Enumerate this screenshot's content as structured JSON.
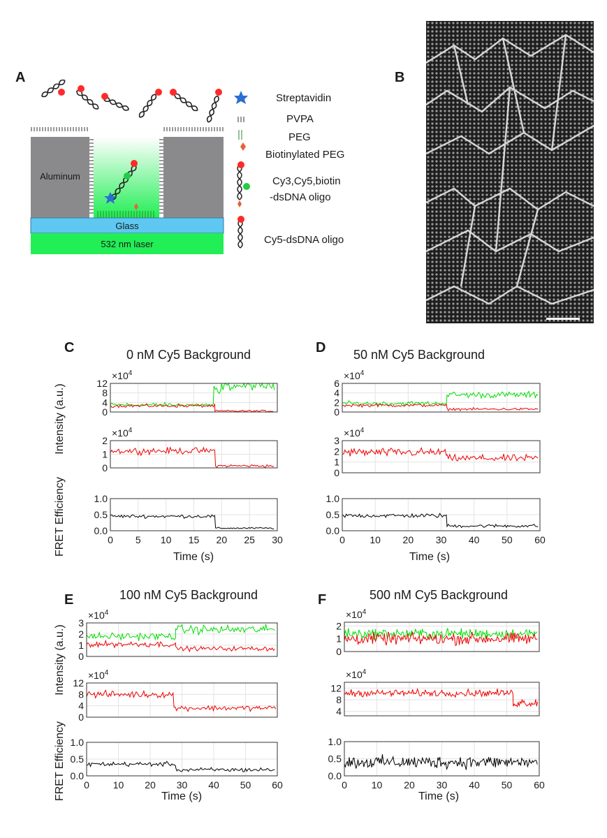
{
  "panel_labels": {
    "a": "A",
    "b": "B",
    "c": "C",
    "d": "D",
    "e": "E",
    "f": "F"
  },
  "schematic": {
    "aluminum": "Aluminum",
    "glass": "Glass",
    "laser": "532 nm laser",
    "legend": {
      "streptavidin": "Streptavidin",
      "pvpa": "PVPA",
      "peg": "PEG",
      "biotin_peg": "Biotinylated PEG",
      "oligo1_line1": "Cy3,Cy5,biotin",
      "oligo1_line2": "-dsDNA oligo",
      "oligo2": "Cy5-dsDNA oligo"
    }
  },
  "micrograph": {
    "description_icon": "sem-micrograph-icon"
  },
  "common": {
    "ylabel_intensity": "Intensity (a.u.)",
    "ylabel_fret": "FRET Efficiency",
    "xlabel": "Time (s)",
    "exp_label": "×10",
    "exp_power": "4"
  },
  "colors": {
    "donor": "#00dd00",
    "acceptor": "#ee0000",
    "fret": "#000000"
  },
  "chart_data": [
    {
      "panel": "C",
      "type": "line",
      "title": "0 nM Cy5 Background",
      "xlabel": "Time (s)",
      "xlim": [
        0,
        30
      ],
      "xticks": [
        0,
        5,
        10,
        15,
        20,
        25,
        30
      ],
      "step": 0.25,
      "subplots": [
        {
          "name": "donor-acceptor",
          "ylim": [
            0,
            12
          ],
          "yticks": [
            0,
            4,
            8,
            12
          ],
          "exponent": "×10^4",
          "series": [
            {
              "name": "donor",
              "color": "#00dd00",
              "segments": [
                {
                  "t0": 0,
                  "t1": 18.6,
                  "mean": 3,
                  "noise": 0.7
                },
                {
                  "t0": 18.6,
                  "t1": 20,
                  "mean": 8,
                  "noise": 3
                },
                {
                  "t0": 20,
                  "t1": 29.5,
                  "mean": 11,
                  "noise": 1.4
                }
              ]
            },
            {
              "name": "acceptor",
              "color": "#ee0000",
              "segments": [
                {
                  "t0": 0,
                  "t1": 18.8,
                  "mean": 2.6,
                  "noise": 0.5
                },
                {
                  "t0": 18.8,
                  "t1": 29.5,
                  "mean": 0.4,
                  "noise": 0.3
                }
              ]
            }
          ]
        },
        {
          "name": "acceptor",
          "ylim": [
            0,
            2
          ],
          "yticks": [
            0,
            1,
            2
          ],
          "exponent": "×10^4",
          "series": [
            {
              "name": "acceptor",
              "color": "#ee0000",
              "segments": [
                {
                  "t0": 0,
                  "t1": 18.9,
                  "mean": 1.25,
                  "noise": 0.18
                },
                {
                  "t0": 18.9,
                  "t1": 29.5,
                  "mean": 0.15,
                  "noise": 0.08
                }
              ]
            }
          ]
        },
        {
          "name": "fret",
          "ylim": [
            0,
            1
          ],
          "yticks": [
            0.0,
            0.5,
            1.0
          ],
          "yticklabels": [
            "0.0",
            "0.5",
            "1.0"
          ],
          "series": [
            {
              "name": "fret",
              "color": "#000000",
              "segments": [
                {
                  "t0": 0,
                  "t1": 18.9,
                  "mean": 0.45,
                  "noise": 0.04
                },
                {
                  "t0": 18.9,
                  "t1": 29.5,
                  "mean": 0.08,
                  "noise": 0.02
                }
              ]
            }
          ]
        }
      ]
    },
    {
      "panel": "D",
      "type": "line",
      "title": "50 nM Cy5 Background",
      "xlabel": "Time (s)",
      "xlim": [
        0,
        60
      ],
      "xticks": [
        0,
        10,
        20,
        30,
        40,
        50,
        60
      ],
      "step": 0.4,
      "subplots": [
        {
          "name": "donor-acceptor",
          "ylim": [
            0,
            6
          ],
          "yticks": [
            0,
            2,
            4,
            6
          ],
          "exponent": "×10^4",
          "series": [
            {
              "name": "donor",
              "color": "#00dd00",
              "segments": [
                {
                  "t0": 0,
                  "t1": 31.8,
                  "mean": 1.8,
                  "noise": 0.35
                },
                {
                  "t0": 31.8,
                  "t1": 59.5,
                  "mean": 3.6,
                  "noise": 0.5
                }
              ]
            },
            {
              "name": "acceptor",
              "color": "#ee0000",
              "segments": [
                {
                  "t0": 0,
                  "t1": 31.8,
                  "mean": 1.4,
                  "noise": 0.25
                },
                {
                  "t0": 31.8,
                  "t1": 59.5,
                  "mean": 0.6,
                  "noise": 0.2
                }
              ]
            }
          ]
        },
        {
          "name": "acceptor",
          "ylim": [
            0,
            3
          ],
          "yticks": [
            0,
            1,
            2,
            3
          ],
          "exponent": "×10^4",
          "series": [
            {
              "name": "acceptor",
              "color": "#ee0000",
              "segments": [
                {
                  "t0": 0,
                  "t1": 31.8,
                  "mean": 1.9,
                  "noise": 0.3
                },
                {
                  "t0": 31.8,
                  "t1": 59.5,
                  "mean": 1.35,
                  "noise": 0.25
                }
              ]
            }
          ]
        },
        {
          "name": "fret",
          "ylim": [
            0,
            1
          ],
          "yticks": [
            0.0,
            0.5,
            1.0
          ],
          "yticklabels": [
            "0.0",
            "0.5",
            "1.0"
          ],
          "series": [
            {
              "name": "fret",
              "color": "#000000",
              "segments": [
                {
                  "t0": 0,
                  "t1": 31.8,
                  "mean": 0.47,
                  "noise": 0.05
                },
                {
                  "t0": 31.8,
                  "t1": 59.5,
                  "mean": 0.15,
                  "noise": 0.04
                }
              ]
            }
          ]
        }
      ]
    },
    {
      "panel": "E",
      "type": "line",
      "title": "100 nM Cy5 Background",
      "xlabel": "Time (s)",
      "xlim": [
        0,
        60
      ],
      "xticks": [
        0,
        10,
        20,
        30,
        40,
        50,
        60
      ],
      "step": 0.4,
      "subplots": [
        {
          "name": "donor-acceptor",
          "ylim": [
            0,
            3
          ],
          "yticks": [
            0,
            1,
            2,
            3
          ],
          "exponent": "×10^4",
          "series": [
            {
              "name": "donor",
              "color": "#00dd00",
              "segments": [
                {
                  "t0": 0,
                  "t1": 28,
                  "mean": 1.8,
                  "noise": 0.25
                },
                {
                  "t0": 28,
                  "t1": 59.5,
                  "mean": 2.4,
                  "noise": 0.3
                }
              ]
            },
            {
              "name": "acceptor",
              "color": "#ee0000",
              "segments": [
                {
                  "t0": 0,
                  "t1": 28,
                  "mean": 1.1,
                  "noise": 0.2
                },
                {
                  "t0": 28,
                  "t1": 59.5,
                  "mean": 0.7,
                  "noise": 0.15
                }
              ]
            }
          ]
        },
        {
          "name": "acceptor",
          "ylim": [
            0,
            12
          ],
          "yticks": [
            0,
            4,
            8,
            12
          ],
          "exponent": "×10^4",
          "series": [
            {
              "name": "acceptor",
              "color": "#ee0000",
              "segments": [
                {
                  "t0": 0,
                  "t1": 27.5,
                  "mean": 8,
                  "noise": 0.9
                },
                {
                  "t0": 27.5,
                  "t1": 59.5,
                  "mean": 3.2,
                  "noise": 0.7
                }
              ]
            }
          ]
        },
        {
          "name": "fret",
          "ylim": [
            0,
            1
          ],
          "yticks": [
            0.0,
            0.5,
            1.0
          ],
          "yticklabels": [
            "0.0",
            "0.5",
            "1.0"
          ],
          "series": [
            {
              "name": "fret",
              "color": "#000000",
              "segments": [
                {
                  "t0": 0,
                  "t1": 28,
                  "mean": 0.35,
                  "noise": 0.05
                },
                {
                  "t0": 28,
                  "t1": 59.5,
                  "mean": 0.18,
                  "noise": 0.05
                }
              ]
            }
          ]
        }
      ]
    },
    {
      "panel": "F",
      "type": "line",
      "title": "500 nM Cy5 Background",
      "xlabel": "Time (s)",
      "xlim": [
        0,
        60
      ],
      "xticks": [
        0,
        10,
        20,
        30,
        40,
        50,
        60
      ],
      "step": 0.3,
      "subplots": [
        {
          "name": "donor-acceptor",
          "ylim": [
            0,
            2.3
          ],
          "yticks": [
            0,
            1,
            2
          ],
          "exponent": "×10^4",
          "series": [
            {
              "name": "donor",
              "color": "#00dd00",
              "segments": [
                {
                  "t0": 0,
                  "t1": 59.5,
                  "mean": 1.4,
                  "noise": 0.3
                }
              ]
            },
            {
              "name": "acceptor",
              "color": "#ee0000",
              "segments": [
                {
                  "t0": 0,
                  "t1": 59.5,
                  "mean": 1.0,
                  "noise": 0.35
                }
              ]
            }
          ]
        },
        {
          "name": "acceptor",
          "ylim": [
            2.5,
            14
          ],
          "yticks": [
            4,
            8,
            12
          ],
          "exponent": "×10^4",
          "series": [
            {
              "name": "acceptor",
              "color": "#ee0000",
              "segments": [
                {
                  "t0": 0,
                  "t1": 52,
                  "mean": 10.3,
                  "noise": 0.9
                },
                {
                  "t0": 52,
                  "t1": 59.5,
                  "mean": 7,
                  "noise": 1.2
                }
              ]
            }
          ]
        },
        {
          "name": "fret",
          "ylim": [
            0,
            1
          ],
          "yticks": [
            0.0,
            0.5,
            1.0
          ],
          "yticklabels": [
            "0.0",
            "0.5",
            "1.0"
          ],
          "series": [
            {
              "name": "fret",
              "color": "#000000",
              "segments": [
                {
                  "t0": 0,
                  "t1": 59.5,
                  "mean": 0.4,
                  "noise": 0.14
                }
              ]
            }
          ]
        }
      ]
    }
  ]
}
